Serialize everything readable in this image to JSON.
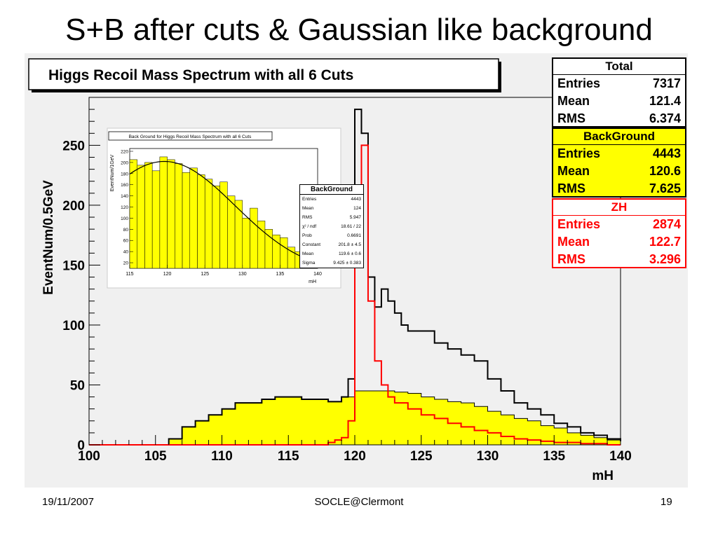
{
  "slide": {
    "title": "S+B after cuts & Gaussian like background",
    "footer_date": "19/11/2007",
    "footer_center": "SOCLE@Clermont",
    "footer_page": "19"
  },
  "chart_data": [
    {
      "type": "line",
      "title": "Higgs Recoil Mass Spectrum with all 6 Cuts",
      "xlabel": "mH",
      "ylabel": "EventNum/0.5GeV",
      "xlim": [
        100,
        140
      ],
      "ylim": [
        0,
        290
      ],
      "x_ticks": [
        "100",
        "105",
        "110",
        "115",
        "120",
        "125",
        "130",
        "135",
        "140"
      ],
      "y_ticks": [
        "0",
        "50",
        "100",
        "150",
        "200",
        "250"
      ],
      "colors": {
        "total": "#000000",
        "background_fill": "#ffff00",
        "zh": "#ff0000"
      },
      "series": [
        {
          "name": "Total",
          "x": [
            100,
            105,
            106,
            107,
            108,
            109,
            110,
            111,
            112,
            113,
            114,
            115,
            116,
            117,
            118,
            119,
            119.5,
            120,
            120.5,
            121,
            121.5,
            122,
            122.5,
            123,
            123.5,
            124,
            125,
            126,
            127,
            128,
            129,
            130,
            131,
            132,
            133,
            134,
            135,
            136,
            137,
            138,
            139,
            140
          ],
          "values": [
            0,
            0,
            5,
            15,
            20,
            25,
            30,
            35,
            35,
            38,
            40,
            40,
            38,
            38,
            36,
            40,
            55,
            280,
            260,
            140,
            115,
            130,
            120,
            110,
            100,
            95,
            95,
            85,
            80,
            75,
            70,
            55,
            45,
            35,
            30,
            25,
            18,
            15,
            10,
            8,
            5,
            3
          ]
        },
        {
          "name": "BackGround",
          "stats": {
            "Entries": "4443",
            "Mean": "120.6",
            "RMS": "7.625"
          },
          "x": [
            100,
            105,
            106,
            107,
            108,
            109,
            110,
            111,
            112,
            113,
            114,
            115,
            116,
            117,
            118,
            119,
            120,
            121,
            122,
            123,
            124,
            125,
            126,
            127,
            128,
            129,
            130,
            131,
            132,
            133,
            134,
            135,
            136,
            137,
            138,
            139,
            140
          ],
          "values": [
            0,
            0,
            5,
            15,
            20,
            25,
            30,
            35,
            35,
            38,
            40,
            40,
            38,
            38,
            36,
            40,
            45,
            45,
            45,
            44,
            43,
            40,
            38,
            36,
            35,
            32,
            28,
            25,
            22,
            20,
            16,
            14,
            10,
            8,
            6,
            4,
            3
          ]
        },
        {
          "name": "ZH",
          "stats": {
            "Entries": "2874",
            "Mean": "122.7",
            "RMS": "3.296"
          },
          "x": [
            100,
            117,
            118,
            118.5,
            119,
            119.5,
            120,
            120.5,
            121,
            121.5,
            122,
            122.5,
            123,
            124,
            125,
            126,
            127,
            128,
            129,
            130,
            131,
            132,
            133,
            134,
            135,
            136,
            137,
            138,
            139,
            140
          ],
          "values": [
            0,
            0,
            2,
            4,
            6,
            20,
            150,
            250,
            120,
            70,
            50,
            40,
            35,
            30,
            25,
            22,
            18,
            15,
            12,
            10,
            7,
            5,
            4,
            3,
            2,
            2,
            1,
            1,
            0,
            0
          ]
        }
      ],
      "stats_total": {
        "Entries": "7317",
        "Mean": "121.4",
        "RMS": "6.374"
      }
    },
    {
      "type": "bar",
      "title": "Back Ground for Higgs Recoil Mass Spectrum with all 6 Cuts",
      "xlabel": "mH",
      "ylabel": "EventNum/1GeV",
      "xlim": [
        115,
        140
      ],
      "ylim": [
        10,
        225
      ],
      "x_ticks": [
        "115",
        "120",
        "125",
        "130",
        "135",
        "140"
      ],
      "y_ticks": [
        "20",
        "40",
        "60",
        "80",
        "100",
        "120",
        "140",
        "160",
        "180",
        "200",
        "220"
      ],
      "categories": [
        115,
        116,
        117,
        118,
        119,
        120,
        121,
        122,
        123,
        124,
        125,
        126,
        127,
        128,
        129,
        130,
        131,
        132,
        133,
        134,
        135,
        136,
        137,
        138,
        139
      ],
      "values": [
        205,
        195,
        200,
        185,
        210,
        205,
        198,
        182,
        190,
        178,
        170,
        158,
        165,
        140,
        132,
        100,
        118,
        95,
        80,
        70,
        65,
        48,
        40,
        32,
        20
      ],
      "fit": {
        "Constant": 201.8,
        "Mean": 119.6,
        "Sigma": 9.425
      },
      "stats": {
        "title": "BackGround",
        "rows": [
          {
            "k": "Entries",
            "v": "4443"
          },
          {
            "k": "Mean",
            "v": "124"
          },
          {
            "k": "RMS",
            "v": "5.947"
          },
          {
            "k": "χ² / ndf",
            "v": "18.61 / 22"
          },
          {
            "k": "Prob",
            "v": "0.6691"
          },
          {
            "k": "Constant",
            "v": "201.8 ± 4.5"
          },
          {
            "k": "Mean",
            "v": "119.6 ± 0.6"
          },
          {
            "k": "Sigma",
            "v": "9.425 ± 0.383"
          }
        ]
      }
    }
  ],
  "stats_labels": {
    "total": "Total",
    "bg": "BackGround",
    "zh": "ZH",
    "entries": "Entries",
    "mean": "Mean",
    "rms": "RMS"
  }
}
